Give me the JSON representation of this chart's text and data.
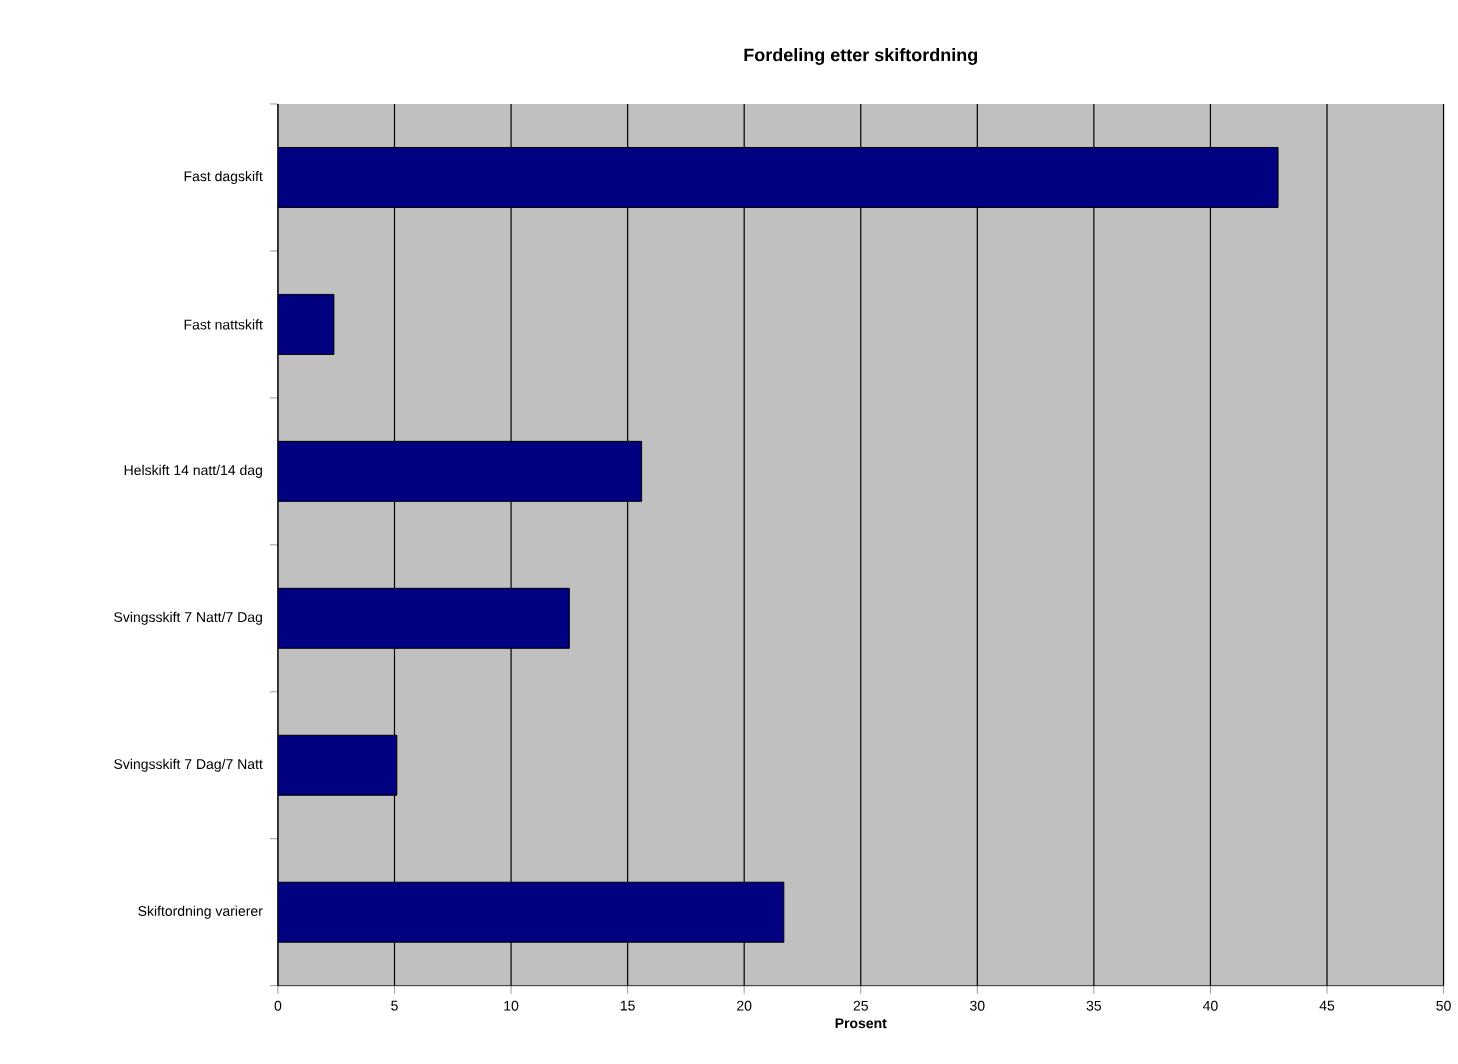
{
  "chart_data": {
    "type": "bar",
    "orientation": "horizontal",
    "title": "Fordeling etter skiftordning",
    "xlabel": "Prosent",
    "categories": [
      "Fast dagskift",
      "Fast nattskift",
      "Helskift 14 natt/14 dag",
      "Svingsskift 7 Natt/7 Dag",
      "Svingsskift 7 Dag/7 Natt",
      "Skiftordning varierer"
    ],
    "values": [
      42.9,
      2.4,
      15.6,
      12.5,
      5.1,
      21.7
    ],
    "color": "#000080",
    "xlim": [
      0,
      50
    ],
    "xticks": [
      0,
      5,
      10,
      15,
      20,
      25,
      30,
      35,
      40,
      45,
      50
    ],
    "grid": "x"
  }
}
